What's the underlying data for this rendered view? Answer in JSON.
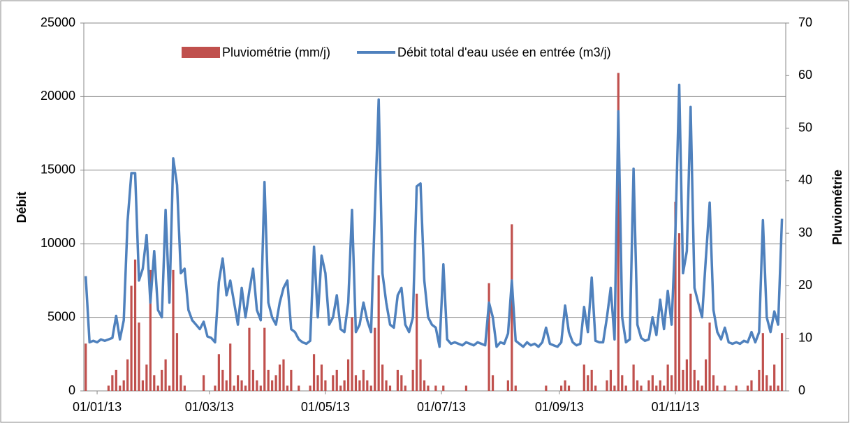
{
  "chart_data": {
    "type": "bar-line",
    "ylabel": "Débit",
    "y2label": "Pluviométrie",
    "xlim": [
      -7,
      362
    ],
    "xticks": [
      {
        "value": 0,
        "label": "01/01/13"
      },
      {
        "value": 59,
        "label": "01/03/13"
      },
      {
        "value": 120,
        "label": "01/05/13"
      },
      {
        "value": 181,
        "label": "01/07/13"
      },
      {
        "value": 243,
        "label": "01/09/13"
      },
      {
        "value": 304,
        "label": "01/11/13"
      }
    ],
    "ylim": [
      0,
      25000
    ],
    "yticks": [
      0,
      5000,
      10000,
      15000,
      20000,
      25000
    ],
    "y2lim": [
      0,
      70
    ],
    "y2ticks": [
      0,
      10,
      20,
      30,
      40,
      50,
      60,
      70
    ],
    "grid": true,
    "legend": "top",
    "x": [
      -6,
      -4,
      -2,
      0,
      2,
      4,
      6,
      8,
      10,
      12,
      14,
      16,
      18,
      20,
      22,
      24,
      26,
      28,
      30,
      32,
      34,
      36,
      38,
      40,
      42,
      44,
      46,
      48,
      50,
      52,
      54,
      56,
      58,
      60,
      62,
      64,
      66,
      68,
      70,
      72,
      74,
      76,
      78,
      80,
      82,
      84,
      86,
      88,
      90,
      92,
      94,
      96,
      98,
      100,
      102,
      104,
      106,
      108,
      110,
      112,
      114,
      116,
      118,
      120,
      122,
      124,
      126,
      128,
      130,
      132,
      134,
      136,
      138,
      140,
      142,
      144,
      146,
      148,
      150,
      152,
      154,
      156,
      158,
      160,
      162,
      164,
      166,
      168,
      170,
      172,
      174,
      176,
      178,
      180,
      182,
      184,
      186,
      188,
      190,
      192,
      194,
      196,
      198,
      200,
      202,
      204,
      206,
      208,
      210,
      212,
      214,
      216,
      218,
      220,
      222,
      224,
      226,
      228,
      230,
      232,
      234,
      236,
      238,
      240,
      242,
      244,
      246,
      248,
      250,
      252,
      254,
      256,
      258,
      260,
      262,
      264,
      266,
      268,
      270,
      272,
      274,
      276,
      278,
      280,
      282,
      284,
      286,
      288,
      290,
      292,
      294,
      296,
      298,
      300,
      302,
      304,
      306,
      308,
      310,
      312,
      314,
      316,
      318,
      320,
      322,
      324,
      326,
      328,
      330,
      332,
      334,
      336,
      338,
      340,
      342,
      344,
      346,
      348,
      350,
      352,
      354,
      356,
      358,
      360
    ],
    "series": [
      {
        "name": "Pluviométrie (mm/j)",
        "color": "#c0504d",
        "kind": "bar",
        "axis": "y2",
        "values": [
          9,
          0,
          0,
          0,
          0,
          0,
          1,
          3,
          4,
          1,
          2,
          6,
          20,
          25,
          13,
          2,
          5,
          23,
          3,
          1,
          4,
          6,
          1,
          23,
          11,
          3,
          1,
          0,
          0,
          0,
          0,
          3,
          0,
          0,
          1,
          7,
          4,
          2,
          9,
          1,
          3,
          2,
          1,
          12,
          4,
          2,
          1,
          12,
          4,
          2,
          3,
          5,
          6,
          1,
          4,
          0,
          1,
          0,
          0,
          1,
          7,
          3,
          5,
          2,
          0,
          3,
          4,
          1,
          2,
          6,
          14,
          3,
          2,
          4,
          2,
          1,
          12,
          22,
          5,
          2,
          1,
          0,
          4,
          3,
          1,
          0,
          4,
          18.5,
          6,
          2,
          1,
          0,
          1,
          0,
          1,
          0,
          0,
          0,
          0,
          0,
          1,
          0,
          0,
          0,
          0,
          0,
          20.5,
          3,
          0,
          0,
          0,
          2,
          31.7,
          1,
          0,
          0,
          0,
          0,
          0,
          0,
          0,
          1,
          0,
          0,
          0,
          1,
          2,
          1,
          0,
          0,
          0,
          5,
          3,
          4,
          1,
          0,
          0,
          2,
          4,
          1,
          60.5,
          3,
          1,
          0,
          5,
          2,
          1,
          0,
          2,
          3,
          1,
          2,
          1,
          5,
          3,
          36,
          30,
          4,
          6,
          18.5,
          4,
          2,
          1,
          6,
          13,
          3,
          1,
          0,
          1,
          0,
          0,
          1,
          0,
          0,
          1,
          2,
          0,
          4,
          11,
          3,
          1,
          5,
          1,
          11
        ]
      },
      {
        "name": "Débit total d'eau usée en entrée (m3/j)",
        "color": "#4f81bd",
        "kind": "line",
        "values": [
          7800,
          3300,
          3400,
          3300,
          3500,
          3400,
          3500,
          3600,
          5100,
          3500,
          4800,
          11500,
          14800,
          14800,
          7500,
          8300,
          10600,
          6000,
          9500,
          5500,
          5000,
          12300,
          6000,
          15800,
          14000,
          8000,
          8300,
          5500,
          4800,
          4500,
          4200,
          4700,
          3700,
          3600,
          3300,
          7400,
          9000,
          6500,
          7500,
          6000,
          4500,
          7000,
          5000,
          6800,
          8300,
          5500,
          4800,
          14200,
          6000,
          5000,
          4500,
          6000,
          7000,
          7500,
          4200,
          4000,
          3500,
          3300,
          3200,
          3400,
          9800,
          5000,
          9200,
          8000,
          4500,
          5000,
          6500,
          4200,
          4000,
          6000,
          12300,
          4000,
          4500,
          6000,
          4800,
          4000,
          12200,
          19800,
          8000,
          6000,
          4500,
          4300,
          6500,
          7000,
          4500,
          4000,
          5000,
          13900,
          14100,
          7500,
          5000,
          4500,
          4300,
          3000,
          8600,
          3500,
          3200,
          3300,
          3200,
          3100,
          3300,
          3200,
          3100,
          3300,
          3200,
          3100,
          6000,
          5000,
          3000,
          3300,
          3200,
          3900,
          7500,
          3400,
          3200,
          3000,
          3300,
          3100,
          3200,
          3000,
          3300,
          4300,
          3200,
          3100,
          3000,
          3300,
          5800,
          4000,
          3300,
          3100,
          3200,
          5700,
          4000,
          7700,
          3400,
          3300,
          3300,
          5000,
          7000,
          3500,
          19000,
          5000,
          3300,
          3500,
          15100,
          4500,
          3600,
          3400,
          3500,
          5000,
          3800,
          6200,
          4200,
          6800,
          4500,
          10800,
          20800,
          8000,
          9500,
          19300,
          7000,
          6000,
          5000,
          9000,
          12800,
          5500,
          4000,
          3500,
          4300,
          3300,
          3200,
          3300,
          3200,
          3400,
          3300,
          4000,
          3300,
          4000,
          11600,
          5000,
          4000,
          5400,
          4500,
          11700
        ]
      }
    ]
  }
}
